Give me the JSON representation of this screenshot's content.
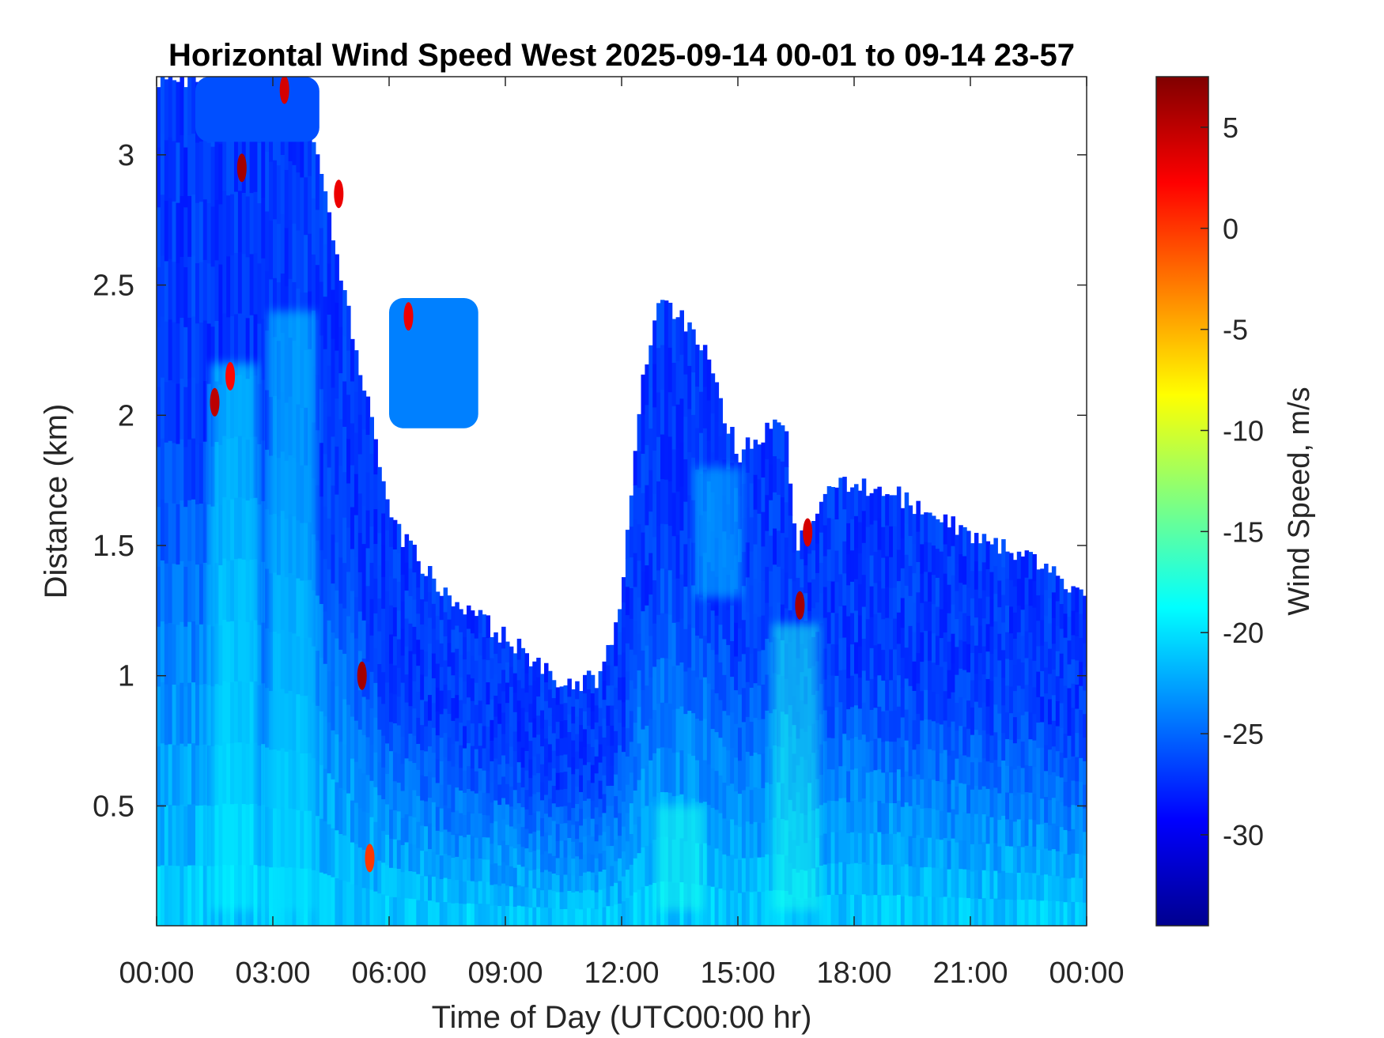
{
  "chart_data": {
    "type": "heatmap",
    "title": "Horizontal Wind Speed West 2025-09-14 00-01 to 09-14 23-57",
    "xlabel": "Time of Day (UTC00:00 hr)",
    "ylabel": "Distance (km)",
    "x_range_hours": [
      0,
      24
    ],
    "x_ticks": [
      {
        "value": 0,
        "label": "00:00"
      },
      {
        "value": 3,
        "label": "03:00"
      },
      {
        "value": 6,
        "label": "06:00"
      },
      {
        "value": 9,
        "label": "09:00"
      },
      {
        "value": 12,
        "label": "12:00"
      },
      {
        "value": 15,
        "label": "15:00"
      },
      {
        "value": 18,
        "label": "18:00"
      },
      {
        "value": 21,
        "label": "21:00"
      },
      {
        "value": 24,
        "label": "00:00"
      }
    ],
    "y_range_km": [
      0.04,
      3.3
    ],
    "y_ticks": [
      {
        "value": 0.5,
        "label": "0.5"
      },
      {
        "value": 1.0,
        "label": "1"
      },
      {
        "value": 1.5,
        "label": "1.5"
      },
      {
        "value": 2.0,
        "label": "2"
      },
      {
        "value": 2.5,
        "label": "2.5"
      },
      {
        "value": 3.0,
        "label": "3"
      }
    ],
    "colorbar": {
      "label": "Wind Speed, m/s",
      "range": [
        -34.5,
        7.5
      ],
      "ticks": [
        {
          "value": 5,
          "label": "5"
        },
        {
          "value": 0,
          "label": "0"
        },
        {
          "value": -5,
          "label": "-5"
        },
        {
          "value": -10,
          "label": "-10"
        },
        {
          "value": -15,
          "label": "-15"
        },
        {
          "value": -20,
          "label": "-20"
        },
        {
          "value": -25,
          "label": "-25"
        },
        {
          "value": -30,
          "label": "-30"
        }
      ],
      "colormap": "jet"
    },
    "grid": false,
    "data_top_km_by_hour": [
      {
        "hour": 0.0,
        "top_km": 3.3
      },
      {
        "hour": 2.5,
        "top_km": 3.3
      },
      {
        "hour": 4.0,
        "top_km": 3.1
      },
      {
        "hour": 5.5,
        "top_km": 2.0
      },
      {
        "hour": 6.0,
        "top_km": 1.6
      },
      {
        "hour": 7.5,
        "top_km": 1.3
      },
      {
        "hour": 9.0,
        "top_km": 1.15
      },
      {
        "hour": 10.5,
        "top_km": 0.95
      },
      {
        "hour": 11.5,
        "top_km": 1.0
      },
      {
        "hour": 12.0,
        "top_km": 1.3
      },
      {
        "hour": 12.5,
        "top_km": 2.1
      },
      {
        "hour": 13.0,
        "top_km": 2.45
      },
      {
        "hour": 14.0,
        "top_km": 2.3
      },
      {
        "hour": 15.0,
        "top_km": 1.85
      },
      {
        "hour": 16.2,
        "top_km": 2.0
      },
      {
        "hour": 16.5,
        "top_km": 1.5
      },
      {
        "hour": 17.5,
        "top_km": 1.75
      },
      {
        "hour": 19.0,
        "top_km": 1.7
      },
      {
        "hour": 21.0,
        "top_km": 1.55
      },
      {
        "hour": 22.5,
        "top_km": 1.45
      },
      {
        "hour": 24.0,
        "top_km": 1.3
      }
    ],
    "data_patches": [
      {
        "hour_start": 6.0,
        "hour_end": 8.3,
        "bottom_km": 1.95,
        "top_km": 2.45,
        "speed": -24
      },
      {
        "hour_start": 1.0,
        "hour_end": 4.2,
        "bottom_km": 3.05,
        "top_km": 3.3,
        "speed": -26
      }
    ],
    "background_speed_ms": -27,
    "near_ground_speed_ms": -21,
    "features": [
      {
        "hour": 1.5,
        "km": 2.05,
        "speed": 5
      },
      {
        "hour": 1.9,
        "km": 2.15,
        "speed": 2
      },
      {
        "hour": 2.2,
        "km": 2.95,
        "speed": 6
      },
      {
        "hour": 3.3,
        "km": 3.25,
        "speed": 4
      },
      {
        "hour": 4.7,
        "km": 2.85,
        "speed": 3
      },
      {
        "hour": 5.3,
        "km": 1.0,
        "speed": 6
      },
      {
        "hour": 5.5,
        "km": 0.3,
        "speed": 0
      },
      {
        "hour": 6.5,
        "km": 2.38,
        "speed": 3
      },
      {
        "hour": 16.6,
        "km": 1.27,
        "speed": 6
      },
      {
        "hour": 16.8,
        "km": 1.55,
        "speed": 4
      }
    ],
    "cyan_plumes": [
      {
        "hour": 2.0,
        "km_start": 0.1,
        "km_end": 2.2,
        "speed": -19
      },
      {
        "hour": 3.5,
        "km_start": 0.1,
        "km_end": 2.4,
        "speed": -20
      },
      {
        "hour": 13.5,
        "km_start": 0.1,
        "km_end": 0.5,
        "speed": -18
      },
      {
        "hour": 16.5,
        "km_start": 0.1,
        "km_end": 1.2,
        "speed": -18
      },
      {
        "hour": 14.5,
        "km_start": 1.3,
        "km_end": 1.8,
        "speed": -21
      }
    ]
  }
}
